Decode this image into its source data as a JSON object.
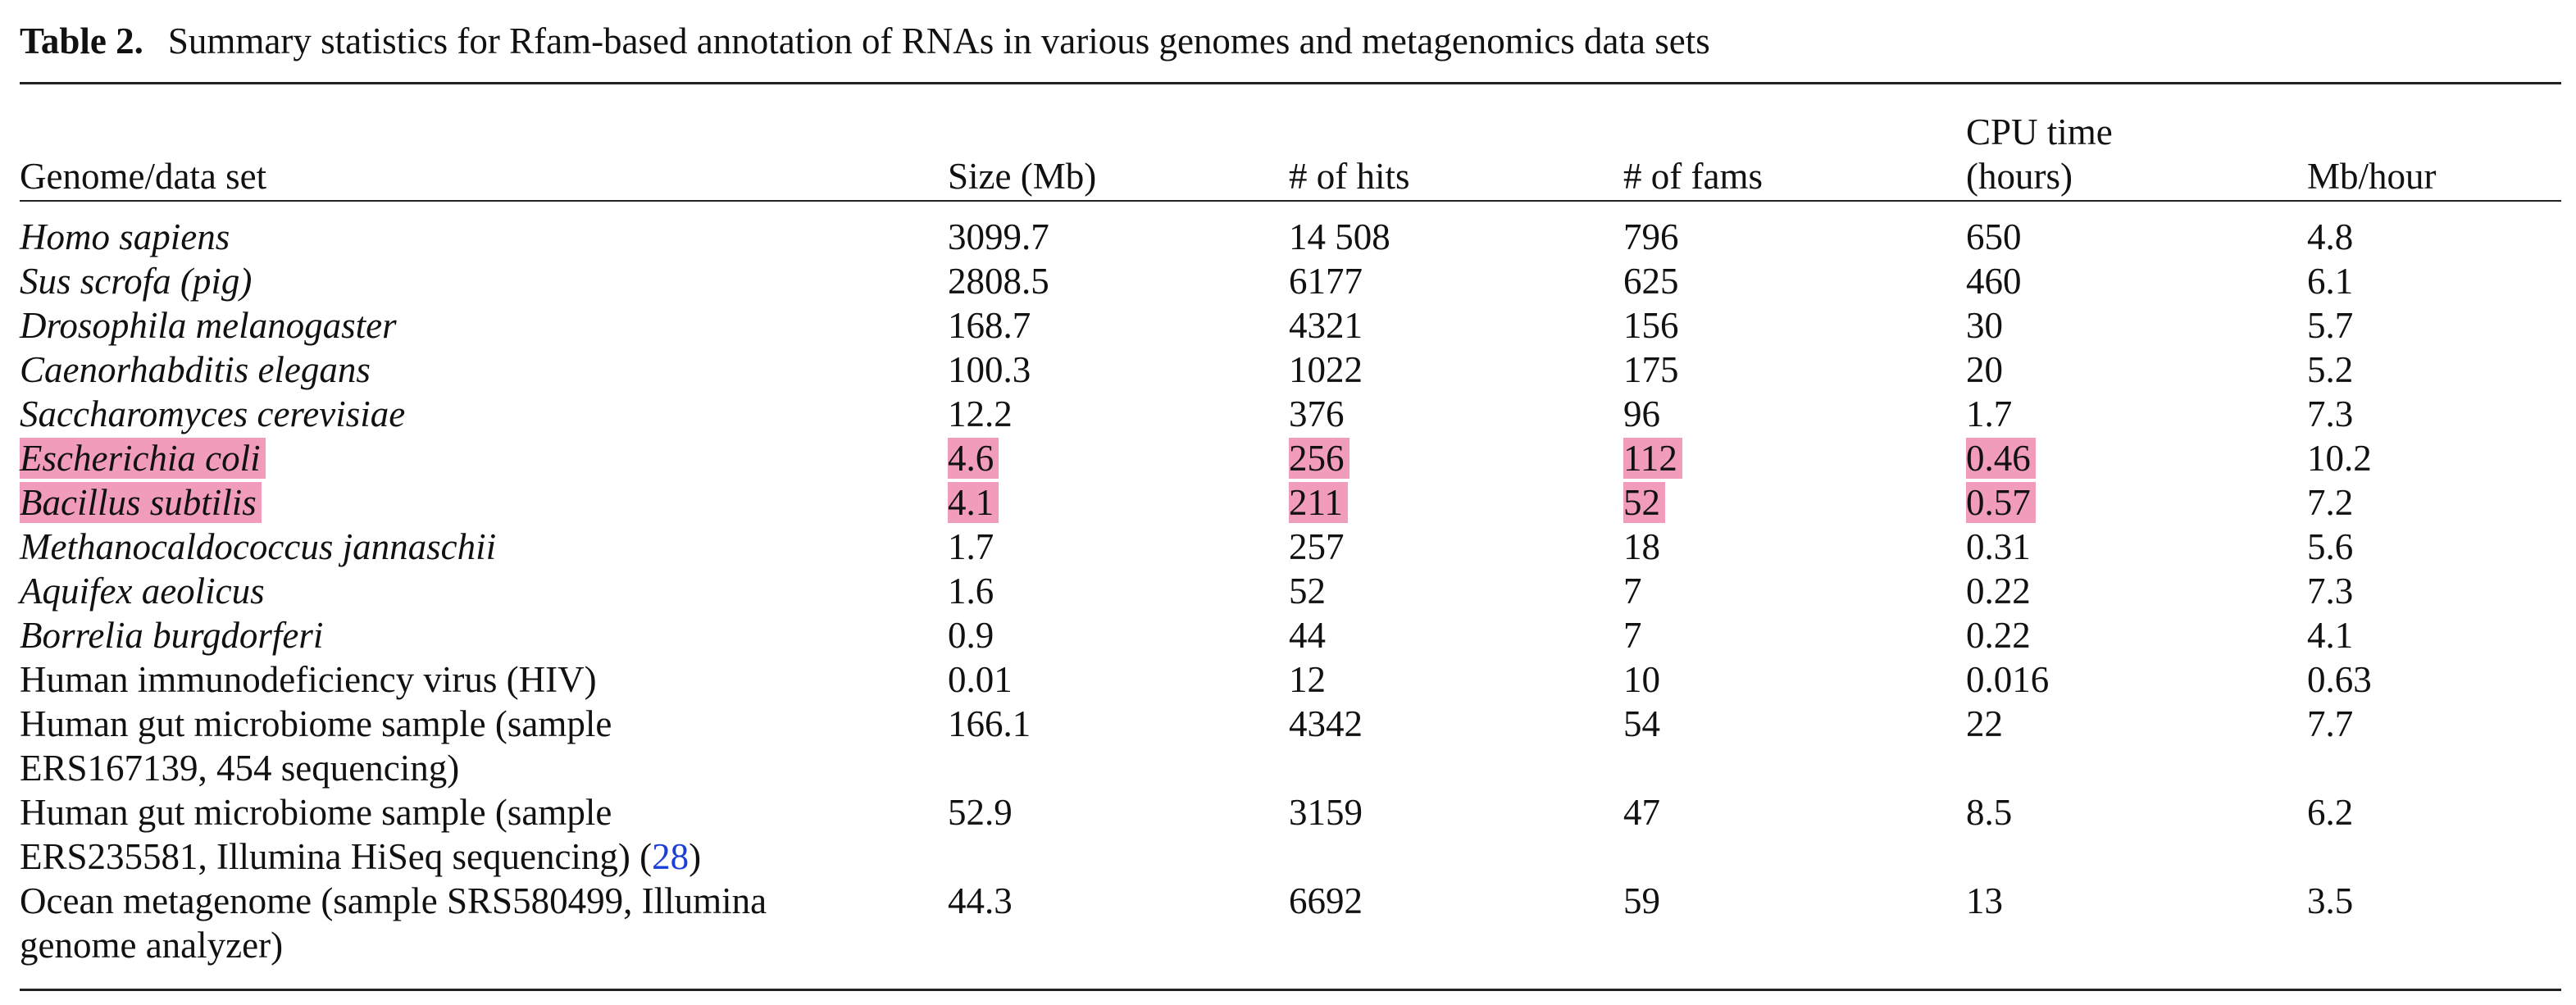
{
  "caption": {
    "label": "Table 2.",
    "text": "Summary statistics for Rfam-based annotation of RNAs in various genomes and metagenomics data sets"
  },
  "colors": {
    "highlight": "#f29cbd",
    "reference_link": "#1a3fd6"
  },
  "table": {
    "headers": [
      "Genome/data set",
      "Size (Mb)",
      "# of hits",
      "# of fams",
      "CPU time (hours)",
      "Mb/hour"
    ],
    "header_cpu_line1": "CPU time",
    "header_cpu_line2": "(hours)",
    "rows": [
      {
        "name": "Homo sapiens",
        "size": "3099.7",
        "hits": "14 508",
        "fams": "796",
        "cpu": "650",
        "mbh": "4.8"
      },
      {
        "name": "Sus scrofa (pig)",
        "size": "2808.5",
        "hits": "6177",
        "fams": "625",
        "cpu": "460",
        "mbh": "6.1"
      },
      {
        "name": "Drosophila melanogaster",
        "size": "168.7",
        "hits": "4321",
        "fams": "156",
        "cpu": "30",
        "mbh": "5.7"
      },
      {
        "name": "Caenorhabditis elegans",
        "size": "100.3",
        "hits": "1022",
        "fams": "175",
        "cpu": "20",
        "mbh": "5.2"
      },
      {
        "name": "Saccharomyces cerevisiae",
        "size": "12.2",
        "hits": "376",
        "fams": "96",
        "cpu": "1.7",
        "mbh": "7.3"
      },
      {
        "name": "Escherichia coli",
        "size": "4.6",
        "hits": "256",
        "fams": "112",
        "cpu": "0.46",
        "mbh": "10.2"
      },
      {
        "name": "Bacillus subtilis",
        "size": "4.1",
        "hits": "211",
        "fams": "52",
        "cpu": "0.57",
        "mbh": "7.2"
      },
      {
        "name": "Methanocaldococcus jannaschii",
        "size": "1.7",
        "hits": "257",
        "fams": "18",
        "cpu": "0.31",
        "mbh": "5.6"
      },
      {
        "name": "Aquifex aeolicus",
        "size": "1.6",
        "hits": "52",
        "fams": "7",
        "cpu": "0.22",
        "mbh": "7.3"
      },
      {
        "name": "Borrelia burgdorferi",
        "size": "0.9",
        "hits": "44",
        "fams": "7",
        "cpu": "0.22",
        "mbh": "4.1"
      },
      {
        "name": "Human immunodeficiency virus (HIV)",
        "size": "0.01",
        "hits": "12",
        "fams": "10",
        "cpu": "0.016",
        "mbh": "0.63"
      },
      {
        "name_line1": "Human gut microbiome sample (sample",
        "name_line2": "ERS167139, 454 sequencing)",
        "size": "166.1",
        "hits": "4342",
        "fams": "54",
        "cpu": "22",
        "mbh": "7.7"
      },
      {
        "name_line1": "Human gut microbiome sample (sample",
        "name_line2": "ERS235581, Illumina HiSeq sequencing) (",
        "ref": "28",
        "name_suffix": ")",
        "size": "52.9",
        "hits": "3159",
        "fams": "47",
        "cpu": "8.5",
        "mbh": "6.2"
      },
      {
        "name_line1": "Ocean metagenome (sample SRS580499, Illumina",
        "name_line2": "genome analyzer)",
        "size": "44.3",
        "hits": "6692",
        "fams": "59",
        "cpu": "13",
        "mbh": "3.5"
      }
    ]
  }
}
